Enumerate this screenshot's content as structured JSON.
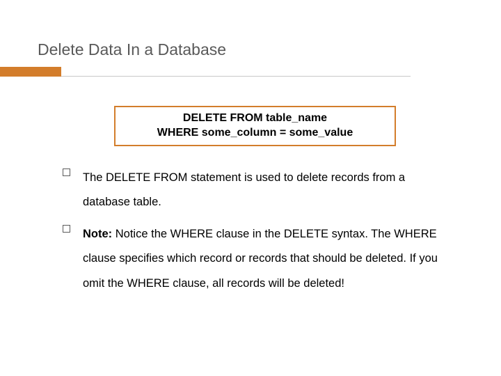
{
  "title": "Delete Data In a Database",
  "accent_color": "#d37d2b",
  "code_box": {
    "line1": "DELETE FROM table_name",
    "line2": "WHERE some_column = some_value"
  },
  "bullets": [
    {
      "runs": [
        {
          "text": "The DELETE FROM statement is used to delete records from a database table.",
          "bold": false
        }
      ]
    },
    {
      "runs": [
        {
          "text": "Note:",
          "bold": true
        },
        {
          "text": " Notice the WHERE clause in the DELETE syntax. The WHERE clause specifies which record or records that should be deleted. If you omit the WHERE clause, all records will be deleted!",
          "bold": false
        }
      ]
    }
  ]
}
